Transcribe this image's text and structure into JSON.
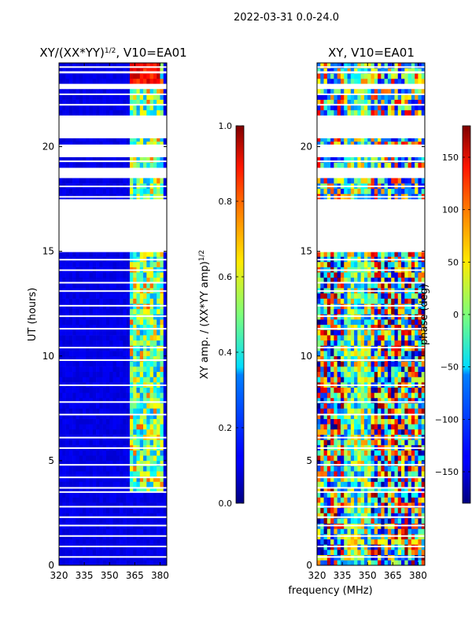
{
  "suptitle": "2022-03-31 0.0-24.0",
  "chart_data": [
    {
      "type": "heatmap",
      "title": "XY/(XX*YY)",
      "title_superscript": "1/2",
      "title_suffix": ", V10=EA01",
      "xlabel": "frequency (MHz)",
      "ylabel": "UT (hours)",
      "xlim": [
        320,
        384
      ],
      "ylim": [
        0,
        24
      ],
      "xticks": [
        "320",
        "335",
        "350",
        "365",
        "380"
      ],
      "xtick_values": [
        320,
        335,
        350,
        365,
        380
      ],
      "yticks": [
        "0",
        "5",
        "10",
        "15",
        "20"
      ],
      "ytick_values": [
        0,
        5,
        10,
        15,
        20
      ],
      "colormap": "jet",
      "colorbar": {
        "label": "XY amp. / (XX*YY amp)",
        "label_superscript": "1/2",
        "range": [
          0.0,
          1.0
        ],
        "ticks": [
          "0.0",
          "0.2",
          "0.4",
          "0.6",
          "0.8",
          "1.0"
        ],
        "tick_values": [
          0.0,
          0.2,
          0.4,
          0.6,
          0.8,
          1.0
        ]
      },
      "flagged_ut_ranges": [
        [
          15.1,
          17.4
        ],
        [
          18.5,
          18.9
        ],
        [
          19.5,
          20.1
        ],
        [
          20.4,
          21.4
        ],
        [
          22.8,
          23.0
        ],
        [
          23.5,
          23.6
        ]
      ],
      "bright_freq_band": [
        363,
        382
      ],
      "bright_ut_band": [
        3.4,
        24
      ],
      "background_value": 0.08
    },
    {
      "type": "heatmap",
      "title": "XY, V10=EA01",
      "xlabel": "frequency (MHz)",
      "ylabel": "",
      "xlim": [
        320,
        384
      ],
      "ylim": [
        0,
        24
      ],
      "xticks": [
        "320",
        "335",
        "350",
        "365",
        "380"
      ],
      "xtick_values": [
        320,
        335,
        350,
        365,
        380
      ],
      "yticks": [
        "0",
        "5",
        "10",
        "15",
        "20"
      ],
      "ytick_values": [
        0,
        5,
        10,
        15,
        20
      ],
      "colormap": "jet",
      "colorbar": {
        "label": "phase (deg)",
        "range": [
          -180,
          180
        ],
        "ticks": [
          "−150",
          "−100",
          "−50",
          "0",
          "50",
          "100",
          "150"
        ],
        "tick_values": [
          -150,
          -100,
          -50,
          0,
          50,
          100,
          150
        ]
      },
      "flagged_ut_ranges": [
        [
          15.1,
          17.4
        ],
        [
          18.5,
          18.9
        ],
        [
          19.5,
          20.1
        ],
        [
          20.4,
          21.4
        ],
        [
          22.8,
          23.0
        ],
        [
          23.5,
          23.6
        ]
      ],
      "coherent_freq_band": [
        337,
        352
      ]
    }
  ]
}
